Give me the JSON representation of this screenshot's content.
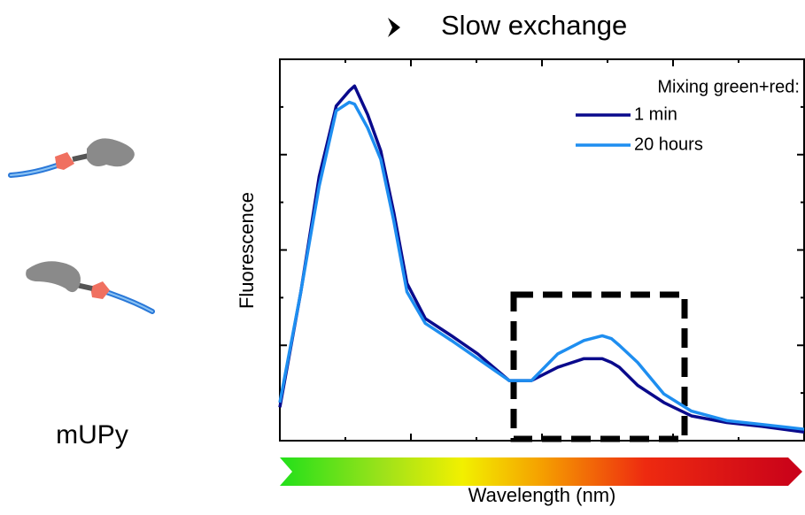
{
  "chart_data": {
    "type": "line",
    "title": "Slow exchange",
    "xlabel": "Wavelength (nm)",
    "ylabel": "Fluorescence",
    "annotation": "mUPy",
    "legend_title": "Mixing green+red:",
    "legend": "upper right",
    "x": [
      0,
      0.16,
      0.3,
      0.43,
      0.53,
      0.57,
      0.67,
      0.77,
      0.87,
      0.97,
      1.11,
      1.31,
      1.51,
      1.75,
      1.92,
      2.12,
      2.32,
      2.46,
      2.53,
      2.59,
      2.73,
      2.93,
      3.14,
      3.41,
      3.68,
      4
    ],
    "series": [
      {
        "name": "1 min",
        "color": "#0a0a8c",
        "values": [
          0.35,
          1.56,
          2.77,
          3.51,
          3.67,
          3.72,
          3.42,
          3.04,
          2.39,
          1.65,
          1.28,
          1.1,
          0.91,
          0.63,
          0.63,
          0.77,
          0.86,
          0.86,
          0.82,
          0.77,
          0.58,
          0.4,
          0.26,
          0.19,
          0.15,
          0.09
        ]
      },
      {
        "name": "20 hours",
        "color": "#1e8ef0",
        "values": [
          0.4,
          1.56,
          2.67,
          3.46,
          3.55,
          3.53,
          3.28,
          2.95,
          2.3,
          1.56,
          1.23,
          1.05,
          0.86,
          0.63,
          0.63,
          0.91,
          1.05,
          1.1,
          1.07,
          1.0,
          0.82,
          0.49,
          0.31,
          0.21,
          0.17,
          0.12
        ]
      }
    ],
    "xlim": [
      0,
      4
    ],
    "xticks": [
      0,
      1,
      2,
      3,
      4
    ],
    "xminorticks": [
      0.5,
      1.5,
      2.5,
      3.5
    ],
    "ylim": [
      0,
      4
    ],
    "yticks": [
      0,
      1,
      2,
      3,
      4
    ],
    "yminorticks": [
      0.5,
      1.5,
      2.5,
      3.5
    ]
  }
}
